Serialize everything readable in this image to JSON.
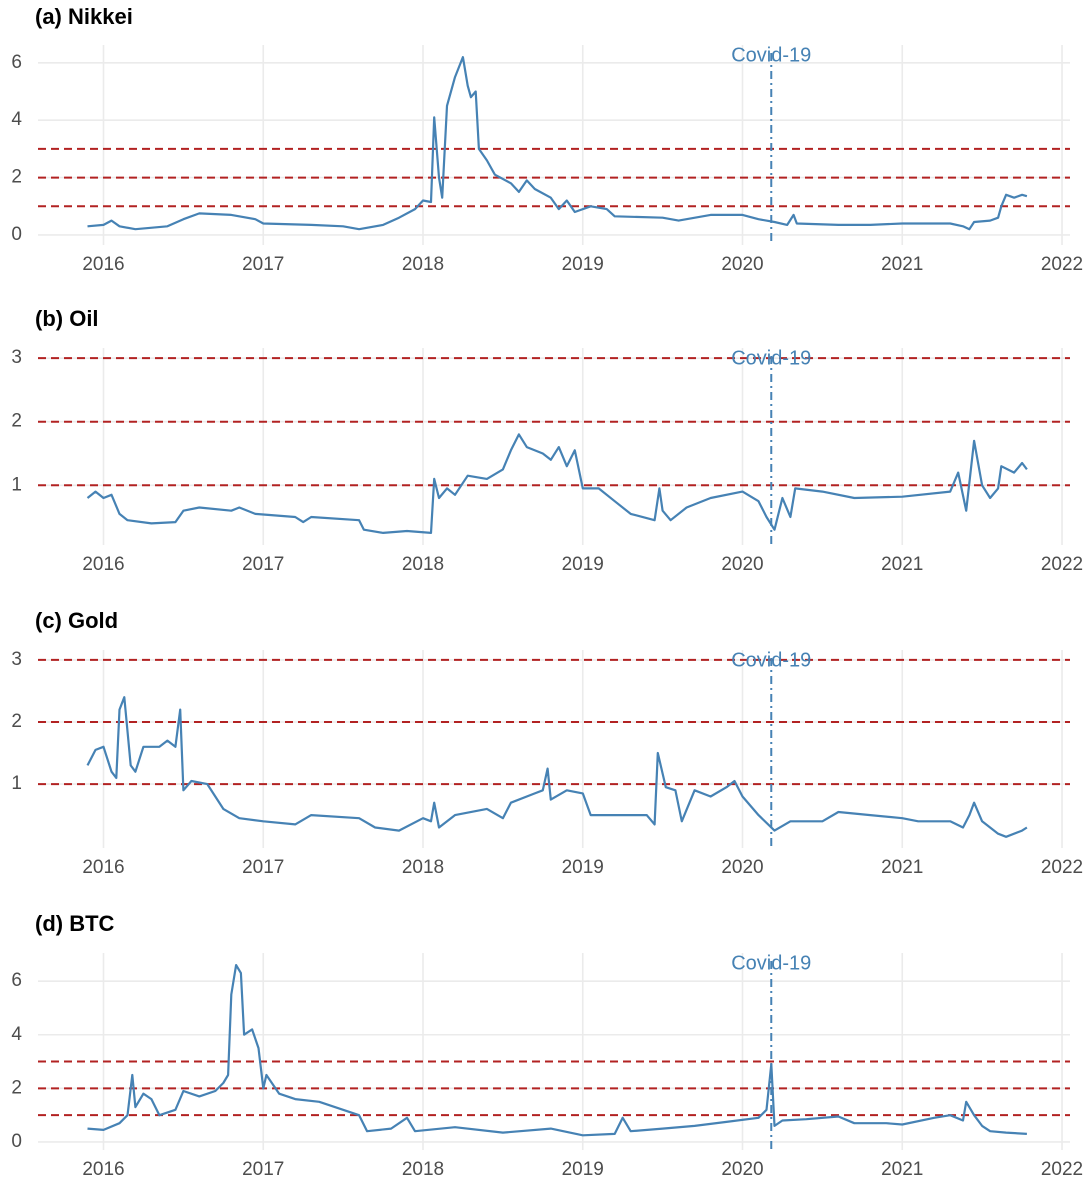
{
  "chart_data": [
    {
      "type": "line",
      "title": "(a) Nikkei",
      "color": "#4682b4",
      "grid": true,
      "xlim": [
        2015.59,
        2022.05
      ],
      "xticks": [
        2016,
        2017,
        2018,
        2019,
        2020,
        2021,
        2022
      ],
      "ylim": [
        -0.35,
        6.62
      ],
      "yticks": [
        0,
        2,
        4,
        6
      ],
      "hlines": [
        1,
        2,
        3
      ],
      "hline_color": "#b22222",
      "vline": {
        "x": 2020.18,
        "label": "Covid-19"
      },
      "x": [
        2015.9,
        2016.0,
        2016.05,
        2016.1,
        2016.2,
        2016.4,
        2016.5,
        2016.6,
        2016.8,
        2016.95,
        2017.0,
        2017.3,
        2017.5,
        2017.6,
        2017.75,
        2017.85,
        2017.95,
        2018.0,
        2018.05,
        2018.07,
        2018.1,
        2018.12,
        2018.15,
        2018.2,
        2018.25,
        2018.28,
        2018.3,
        2018.33,
        2018.35,
        2018.4,
        2018.45,
        2018.55,
        2018.6,
        2018.65,
        2018.7,
        2018.8,
        2018.85,
        2018.9,
        2018.95,
        2019.05,
        2019.15,
        2019.2,
        2019.5,
        2019.6,
        2019.8,
        2020.0,
        2020.1,
        2020.2,
        2020.28,
        2020.32,
        2020.34,
        2020.6,
        2020.8,
        2021.0,
        2021.3,
        2021.38,
        2021.42,
        2021.45,
        2021.55,
        2021.6,
        2021.62,
        2021.65,
        2021.7,
        2021.75,
        2021.78
      ],
      "values": [
        0.3,
        0.35,
        0.5,
        0.3,
        0.2,
        0.3,
        0.55,
        0.75,
        0.7,
        0.55,
        0.4,
        0.35,
        0.3,
        0.2,
        0.35,
        0.6,
        0.9,
        1.2,
        1.15,
        4.1,
        2.0,
        1.3,
        4.5,
        5.5,
        6.2,
        5.2,
        4.8,
        5.0,
        3.0,
        2.6,
        2.1,
        1.8,
        1.5,
        1.9,
        1.6,
        1.3,
        0.9,
        1.2,
        0.8,
        1.0,
        0.9,
        0.65,
        0.6,
        0.5,
        0.7,
        0.7,
        0.55,
        0.45,
        0.35,
        0.7,
        0.4,
        0.35,
        0.35,
        0.4,
        0.4,
        0.3,
        0.2,
        0.45,
        0.5,
        0.6,
        1.0,
        1.4,
        1.3,
        1.4,
        1.35
      ]
    },
    {
      "type": "line",
      "title": "(b) Oil",
      "color": "#4682b4",
      "grid": true,
      "xlim": [
        2015.59,
        2022.05
      ],
      "xticks": [
        2016,
        2017,
        2018,
        2019,
        2020,
        2021,
        2022
      ],
      "ylim": [
        0.06,
        3.16
      ],
      "yticks": [
        1,
        2,
        3
      ],
      "hlines": [
        1,
        2,
        3
      ],
      "hline_color": "#b22222",
      "vline": {
        "x": 2020.18,
        "label": "Covid-19"
      },
      "x": [
        2015.9,
        2015.95,
        2016.0,
        2016.05,
        2016.1,
        2016.15,
        2016.3,
        2016.45,
        2016.5,
        2016.6,
        2016.8,
        2016.85,
        2016.95,
        2017.2,
        2017.25,
        2017.3,
        2017.6,
        2017.63,
        2017.75,
        2017.9,
        2018.05,
        2018.07,
        2018.1,
        2018.15,
        2018.2,
        2018.28,
        2018.4,
        2018.5,
        2018.55,
        2018.6,
        2018.65,
        2018.75,
        2018.8,
        2018.85,
        2018.9,
        2018.95,
        2019.0,
        2019.1,
        2019.2,
        2019.3,
        2019.45,
        2019.48,
        2019.5,
        2019.55,
        2019.65,
        2019.8,
        2020.0,
        2020.1,
        2020.15,
        2020.2,
        2020.25,
        2020.3,
        2020.33,
        2020.5,
        2020.7,
        2021.0,
        2021.3,
        2021.35,
        2021.4,
        2021.45,
        2021.5,
        2021.55,
        2021.6,
        2021.62,
        2021.7,
        2021.75,
        2021.78
      ],
      "values": [
        0.8,
        0.9,
        0.8,
        0.85,
        0.55,
        0.45,
        0.4,
        0.42,
        0.6,
        0.65,
        0.6,
        0.65,
        0.55,
        0.5,
        0.42,
        0.5,
        0.45,
        0.3,
        0.25,
        0.28,
        0.25,
        1.1,
        0.8,
        0.95,
        0.85,
        1.15,
        1.1,
        1.25,
        1.55,
        1.8,
        1.6,
        1.5,
        1.4,
        1.6,
        1.3,
        1.55,
        0.95,
        0.95,
        0.75,
        0.55,
        0.45,
        0.95,
        0.6,
        0.45,
        0.65,
        0.8,
        0.9,
        0.75,
        0.5,
        0.3,
        0.8,
        0.5,
        0.95,
        0.9,
        0.8,
        0.82,
        0.9,
        1.2,
        0.6,
        1.7,
        1.0,
        0.8,
        0.95,
        1.3,
        1.2,
        1.35,
        1.25
      ]
    },
    {
      "type": "line",
      "title": "(c) Gold",
      "color": "#4682b4",
      "grid": true,
      "xlim": [
        2015.59,
        2022.05
      ],
      "xticks": [
        2016,
        2017,
        2018,
        2019,
        2020,
        2021,
        2022
      ],
      "ylim": [
        -0.03,
        3.16
      ],
      "yticks": [
        1,
        2,
        3
      ],
      "hlines": [
        1,
        2,
        3
      ],
      "hline_color": "#b22222",
      "vline": {
        "x": 2020.18,
        "label": "Covid-19"
      },
      "x": [
        2015.9,
        2015.95,
        2016.0,
        2016.05,
        2016.08,
        2016.1,
        2016.13,
        2016.17,
        2016.2,
        2016.25,
        2016.35,
        2016.4,
        2016.45,
        2016.48,
        2016.5,
        2016.55,
        2016.65,
        2016.75,
        2016.85,
        2017.0,
        2017.2,
        2017.3,
        2017.6,
        2017.7,
        2017.85,
        2018.0,
        2018.05,
        2018.07,
        2018.1,
        2018.2,
        2018.4,
        2018.5,
        2018.55,
        2018.7,
        2018.75,
        2018.78,
        2018.8,
        2018.9,
        2019.0,
        2019.05,
        2019.2,
        2019.4,
        2019.45,
        2019.47,
        2019.52,
        2019.58,
        2019.62,
        2019.7,
        2019.8,
        2019.9,
        2019.95,
        2020.0,
        2020.1,
        2020.2,
        2020.3,
        2020.5,
        2020.6,
        2020.8,
        2021.0,
        2021.1,
        2021.3,
        2021.38,
        2021.42,
        2021.45,
        2021.5,
        2021.6,
        2021.65,
        2021.75,
        2021.78
      ],
      "values": [
        1.3,
        1.55,
        1.6,
        1.2,
        1.1,
        2.2,
        2.4,
        1.3,
        1.2,
        1.6,
        1.6,
        1.7,
        1.6,
        2.2,
        0.9,
        1.05,
        1.0,
        0.6,
        0.45,
        0.4,
        0.35,
        0.5,
        0.45,
        0.3,
        0.25,
        0.45,
        0.4,
        0.7,
        0.3,
        0.5,
        0.6,
        0.45,
        0.7,
        0.85,
        0.9,
        1.25,
        0.75,
        0.9,
        0.85,
        0.5,
        0.5,
        0.5,
        0.35,
        1.5,
        0.95,
        0.9,
        0.4,
        0.9,
        0.8,
        0.95,
        1.05,
        0.8,
        0.5,
        0.25,
        0.4,
        0.4,
        0.55,
        0.5,
        0.45,
        0.4,
        0.4,
        0.3,
        0.5,
        0.7,
        0.4,
        0.2,
        0.15,
        0.25,
        0.3
      ]
    },
    {
      "type": "line",
      "title": "(d) BTC",
      "color": "#4682b4",
      "grid": true,
      "xlim": [
        2015.59,
        2022.05
      ],
      "xticks": [
        2016,
        2017,
        2018,
        2019,
        2020,
        2021,
        2022
      ],
      "ylim": [
        -0.3,
        7.05
      ],
      "yticks": [
        0,
        2,
        4,
        6
      ],
      "hlines": [
        1,
        2,
        3
      ],
      "hline_color": "#b22222",
      "vline": {
        "x": 2020.18,
        "label": "Covid-19"
      },
      "x": [
        2015.9,
        2016.0,
        2016.1,
        2016.15,
        2016.18,
        2016.2,
        2016.25,
        2016.3,
        2016.35,
        2016.45,
        2016.5,
        2016.6,
        2016.7,
        2016.75,
        2016.78,
        2016.8,
        2016.83,
        2016.86,
        2016.88,
        2016.93,
        2016.97,
        2017.0,
        2017.02,
        2017.1,
        2017.2,
        2017.35,
        2017.5,
        2017.6,
        2017.65,
        2017.8,
        2017.9,
        2017.95,
        2018.2,
        2018.5,
        2018.8,
        2019.0,
        2019.2,
        2019.25,
        2019.3,
        2019.5,
        2019.7,
        2019.9,
        2020.1,
        2020.15,
        2020.18,
        2020.2,
        2020.25,
        2020.4,
        2020.6,
        2020.7,
        2020.9,
        2021.0,
        2021.2,
        2021.3,
        2021.38,
        2021.4,
        2021.45,
        2021.5,
        2021.55,
        2021.65,
        2021.78
      ],
      "values": [
        0.5,
        0.45,
        0.7,
        1.0,
        2.5,
        1.3,
        1.8,
        1.6,
        1.0,
        1.2,
        1.9,
        1.7,
        1.9,
        2.2,
        2.5,
        5.5,
        6.6,
        6.3,
        4.0,
        4.2,
        3.5,
        2.0,
        2.5,
        1.8,
        1.6,
        1.5,
        1.2,
        1.0,
        0.4,
        0.5,
        0.9,
        0.4,
        0.55,
        0.35,
        0.5,
        0.25,
        0.3,
        0.9,
        0.4,
        0.5,
        0.6,
        0.75,
        0.9,
        1.2,
        2.9,
        0.6,
        0.8,
        0.85,
        0.95,
        0.7,
        0.7,
        0.65,
        0.9,
        1.0,
        0.8,
        1.5,
        1.0,
        0.6,
        0.4,
        0.35,
        0.3
      ]
    }
  ]
}
